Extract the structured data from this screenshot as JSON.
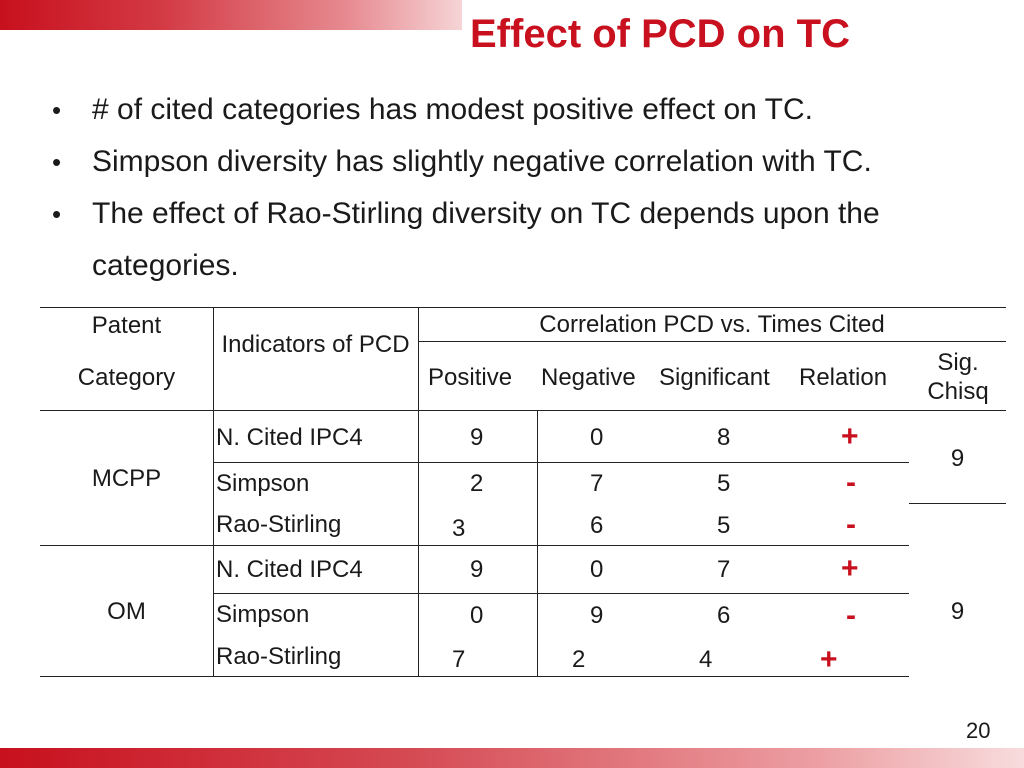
{
  "slide": {
    "title": "Effect of PCD on TC",
    "bullets": [
      "# of cited categories has modest positive effect on TC.",
      "Simpson diversity has slightly negative correlation with TC.",
      "The effect of Rao-Stirling diversity on TC depends upon the categories."
    ],
    "bullet_symbol": "•",
    "page_number": "20",
    "accent_color": "#c8101e"
  },
  "table": {
    "header": {
      "patent": "Patent",
      "category": "Category",
      "indicators": "Indicators of PCD",
      "correlation": "Correlation PCD vs. Times Cited",
      "positive": "Positive",
      "negative": "Negative",
      "significant": "Significant",
      "relation": "Relation",
      "sigchisq": "Sig. Chisq"
    },
    "groups": [
      {
        "category": "MCPP",
        "sigchisq": "9",
        "rows": [
          {
            "indicator": "N. Cited IPC4",
            "positive": "9",
            "negative": "0",
            "significant": "8",
            "relation": "+"
          },
          {
            "indicator": "Simpson",
            "positive": "2",
            "negative": "7",
            "significant": "5",
            "relation": "-"
          },
          {
            "indicator": "Rao-Stirling",
            "positive": "3",
            "negative": "6",
            "significant": "5",
            "relation": "-"
          }
        ]
      },
      {
        "category": "OM",
        "sigchisq": "9",
        "rows": [
          {
            "indicator": "N. Cited IPC4",
            "positive": "9",
            "negative": "0",
            "significant": "7",
            "relation": "+"
          },
          {
            "indicator": "Simpson",
            "positive": "0",
            "negative": "9",
            "significant": "6",
            "relation": "-"
          },
          {
            "indicator": "Rao-Stirling",
            "positive": "7",
            "negative": "2",
            "significant": "4",
            "relation": "+"
          }
        ]
      }
    ]
  }
}
